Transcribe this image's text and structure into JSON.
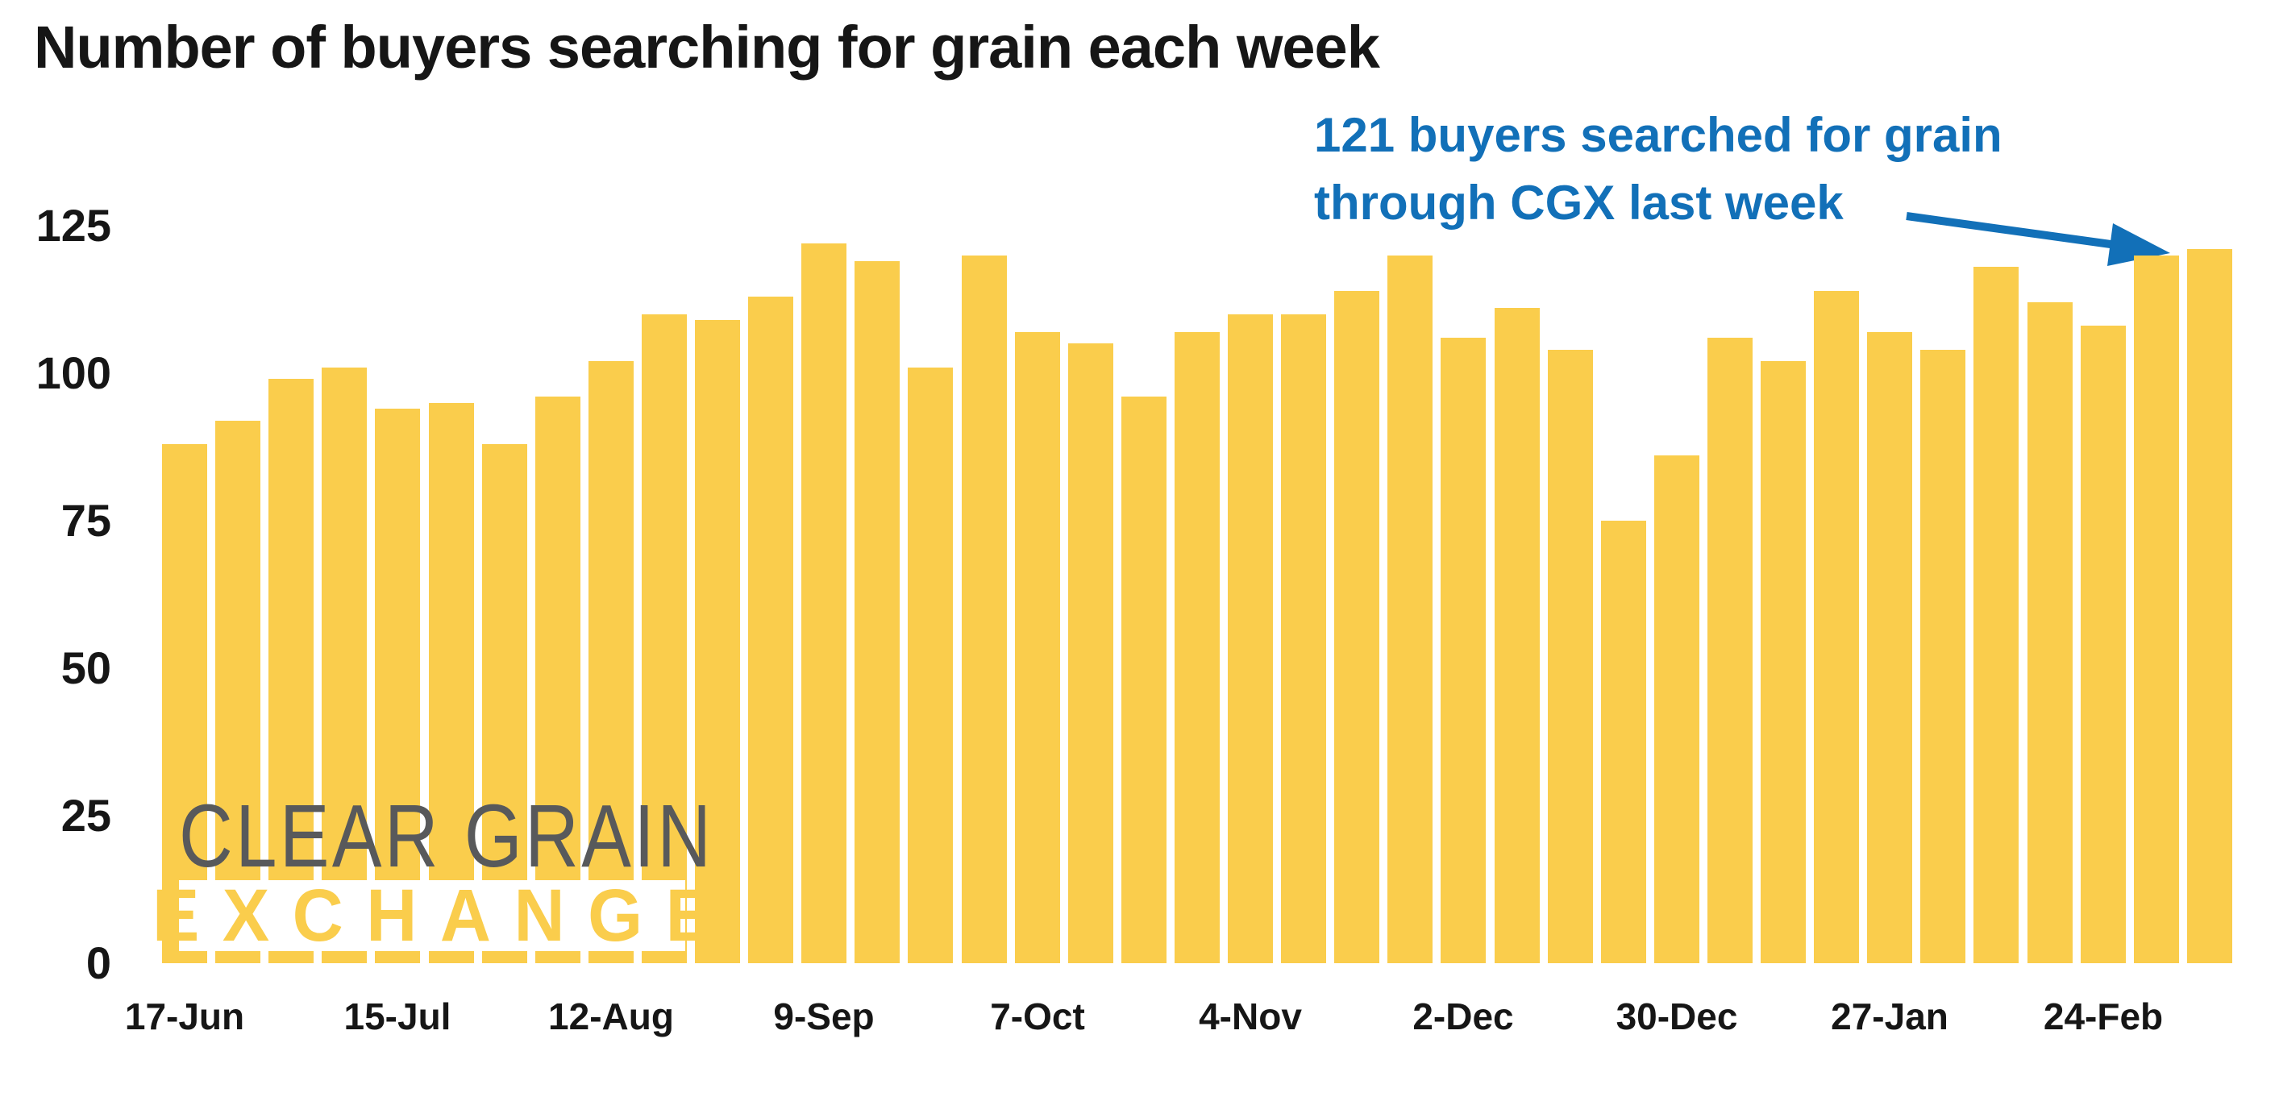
{
  "title": "Number of buyers searching for grain each week",
  "annotation": {
    "line1": "121 buyers searched for grain",
    "line2": "through CGX last week"
  },
  "watermark": {
    "line1": "CLEAR GRAIN",
    "line2": "EXCHANGE"
  },
  "colors": {
    "bar": "#FACD4C",
    "accent_blue": "#1270B8",
    "ink": "#161616",
    "logo_gray": "#58595B",
    "background": "#FFFFFF"
  },
  "chart_data": {
    "type": "bar",
    "title": "Number of buyers searching for grain each week",
    "values": [
      88,
      92,
      99,
      101,
      94,
      95,
      88,
      96,
      102,
      110,
      109,
      113,
      122,
      119,
      101,
      120,
      107,
      105,
      96,
      107,
      110,
      110,
      114,
      120,
      106,
      111,
      104,
      75,
      86,
      106,
      102,
      114,
      107,
      104,
      118,
      112,
      108,
      120,
      121
    ],
    "x_tick_labels": [
      "17-Jun",
      "15-Jul",
      "12-Aug",
      "9-Sep",
      "7-Oct",
      "4-Nov",
      "2-Dec",
      "30-Dec",
      "27-Jan",
      "24-Feb"
    ],
    "x_tick_positions": [
      0,
      4,
      8,
      12,
      16,
      20,
      24,
      28,
      32,
      36
    ],
    "y_ticks": [
      0,
      25,
      50,
      75,
      100,
      125
    ],
    "ylim": [
      0,
      125
    ],
    "xlabel": "",
    "ylabel": "",
    "grid": false,
    "legend": false,
    "annotation_value": 121
  }
}
